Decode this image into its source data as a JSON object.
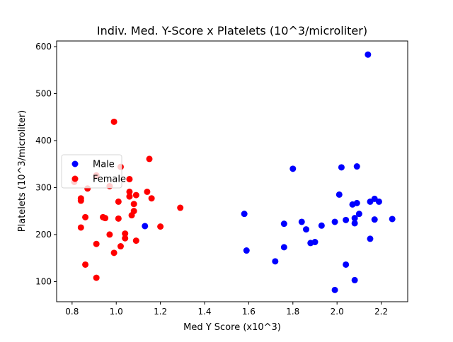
{
  "chart_data": {
    "type": "scatter",
    "title": "Indiv. Med. Y-Score x Platelets (10^3/microliter)",
    "xlabel": "Med Y Score (x10^3)",
    "ylabel": "Platelets (10^3/microliter)",
    "xlim": [
      0.73,
      2.32
    ],
    "ylim": [
      57,
      612
    ],
    "xticks": [
      0.8,
      1.0,
      1.2,
      1.4,
      1.6,
      1.8,
      2.0,
      2.2
    ],
    "xtick_labels": [
      "0.8",
      "1.0",
      "1.2",
      "1.4",
      "1.6",
      "1.8",
      "2.0",
      "2.2"
    ],
    "yticks": [
      100,
      200,
      300,
      400,
      500,
      600
    ],
    "ytick_labels": [
      "100",
      "200",
      "300",
      "400",
      "500",
      "600"
    ],
    "grid": false,
    "legend_position": "center-left",
    "series": [
      {
        "name": "Male",
        "color": "#0000ff",
        "points": [
          [
            1.13,
            218
          ],
          [
            1.58,
            244
          ],
          [
            1.59,
            166
          ],
          [
            1.72,
            143
          ],
          [
            1.76,
            223
          ],
          [
            1.76,
            173
          ],
          [
            1.8,
            340
          ],
          [
            1.84,
            227
          ],
          [
            1.86,
            211
          ],
          [
            1.88,
            182
          ],
          [
            1.9,
            184
          ],
          [
            1.93,
            219
          ],
          [
            1.99,
            227
          ],
          [
            1.99,
            82
          ],
          [
            2.01,
            285
          ],
          [
            2.02,
            343
          ],
          [
            2.04,
            231
          ],
          [
            2.04,
            136
          ],
          [
            2.07,
            264
          ],
          [
            2.08,
            235
          ],
          [
            2.08,
            224
          ],
          [
            2.08,
            103
          ],
          [
            2.09,
            345
          ],
          [
            2.09,
            267
          ],
          [
            2.1,
            244
          ],
          [
            2.14,
            583
          ],
          [
            2.15,
            270
          ],
          [
            2.15,
            191
          ],
          [
            2.17,
            276
          ],
          [
            2.17,
            232
          ],
          [
            2.19,
            270
          ],
          [
            2.25,
            233
          ]
        ]
      },
      {
        "name": "Female",
        "color": "#ff0000",
        "points": [
          [
            0.81,
            312
          ],
          [
            0.84,
            277
          ],
          [
            0.84,
            272
          ],
          [
            0.84,
            215
          ],
          [
            0.86,
            136
          ],
          [
            0.86,
            237
          ],
          [
            0.87,
            298
          ],
          [
            0.91,
            326
          ],
          [
            0.91,
            180
          ],
          [
            0.91,
            108
          ],
          [
            0.94,
            237
          ],
          [
            0.95,
            235
          ],
          [
            0.97,
            303
          ],
          [
            0.97,
            200
          ],
          [
            0.99,
            440
          ],
          [
            0.99,
            161
          ],
          [
            1.01,
            270
          ],
          [
            1.01,
            234
          ],
          [
            1.02,
            344
          ],
          [
            1.02,
            175
          ],
          [
            1.04,
            202
          ],
          [
            1.04,
            192
          ],
          [
            1.06,
            291
          ],
          [
            1.06,
            281
          ],
          [
            1.06,
            318
          ],
          [
            1.07,
            241
          ],
          [
            1.08,
            265
          ],
          [
            1.08,
            250
          ],
          [
            1.09,
            284
          ],
          [
            1.09,
            187
          ],
          [
            1.14,
            291
          ],
          [
            1.15,
            361
          ],
          [
            1.16,
            277
          ],
          [
            1.2,
            217
          ],
          [
            1.29,
            257
          ]
        ]
      }
    ]
  }
}
